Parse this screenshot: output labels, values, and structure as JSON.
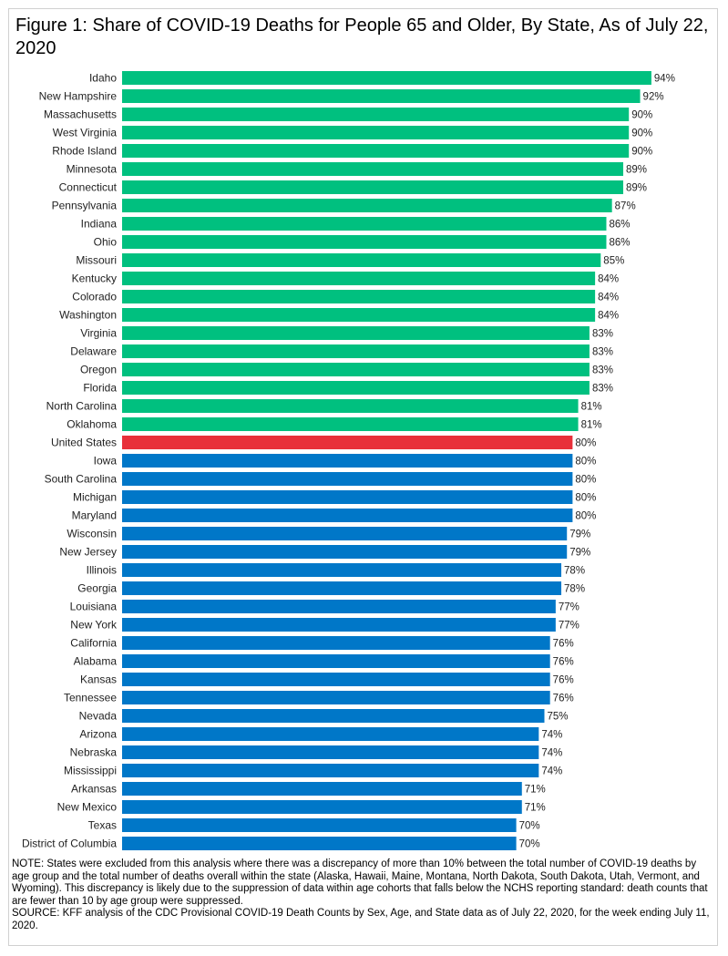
{
  "chart_data": {
    "type": "bar",
    "orientation": "horizontal",
    "title": "Figure 1: Share of COVID-19 Deaths for People 65 and Older, By State, As of July 22, 2020",
    "xlabel": "",
    "ylabel": "",
    "xlim": [
      0,
      100
    ],
    "grid": false,
    "value_suffix": "%",
    "colors": {
      "above": "#00c07f",
      "us": "#e8303a",
      "below": "#0077c8"
    },
    "categories": [
      "Idaho",
      "New Hampshire",
      "Massachusetts",
      "West Virginia",
      "Rhode Island",
      "Minnesota",
      "Connecticut",
      "Pennsylvania",
      "Indiana",
      "Ohio",
      "Missouri",
      "Kentucky",
      "Colorado",
      "Washington",
      "Virginia",
      "Delaware",
      "Oregon",
      "Florida",
      "North Carolina",
      "Oklahoma",
      "United States",
      "Iowa",
      "South Carolina",
      "Michigan",
      "Maryland",
      "Wisconsin",
      "New Jersey",
      "Illinois",
      "Georgia",
      "Louisiana",
      "New York",
      "California",
      "Alabama",
      "Kansas",
      "Tennessee",
      "Nevada",
      "Arizona",
      "Nebraska",
      "Mississippi",
      "Arkansas",
      "New Mexico",
      "Texas",
      "District of Columbia"
    ],
    "values": [
      94,
      92,
      90,
      90,
      90,
      89,
      89,
      87,
      86,
      86,
      85,
      84,
      84,
      84,
      83,
      83,
      83,
      83,
      81,
      81,
      80,
      80,
      80,
      80,
      80,
      79,
      79,
      78,
      78,
      77,
      77,
      76,
      76,
      76,
      76,
      75,
      74,
      74,
      74,
      71,
      71,
      70,
      70
    ],
    "groups": [
      "above",
      "above",
      "above",
      "above",
      "above",
      "above",
      "above",
      "above",
      "above",
      "above",
      "above",
      "above",
      "above",
      "above",
      "above",
      "above",
      "above",
      "above",
      "above",
      "above",
      "us",
      "below",
      "below",
      "below",
      "below",
      "below",
      "below",
      "below",
      "below",
      "below",
      "below",
      "below",
      "below",
      "below",
      "below",
      "below",
      "below",
      "below",
      "below",
      "below",
      "below",
      "below",
      "below"
    ]
  },
  "notes": {
    "note": "NOTE: States were excluded from this analysis where there was a discrepancy of more than 10% between the total number of COVID-19 deaths by age group and the total number of deaths overall within the state (Alaska, Hawaii, Maine, Montana, North Dakota, South Dakota, Utah, Vermont, and Wyoming). This discrepancy is likely due to the suppression of data within age cohorts that falls below the NCHS reporting standard: death counts that are fewer than 10 by age group were suppressed.",
    "source": "SOURCE: KFF analysis of the CDC Provisional COVID-19 Death Counts by Sex, Age, and State data as of July 22, 2020, for the week ending July 11, 2020."
  }
}
